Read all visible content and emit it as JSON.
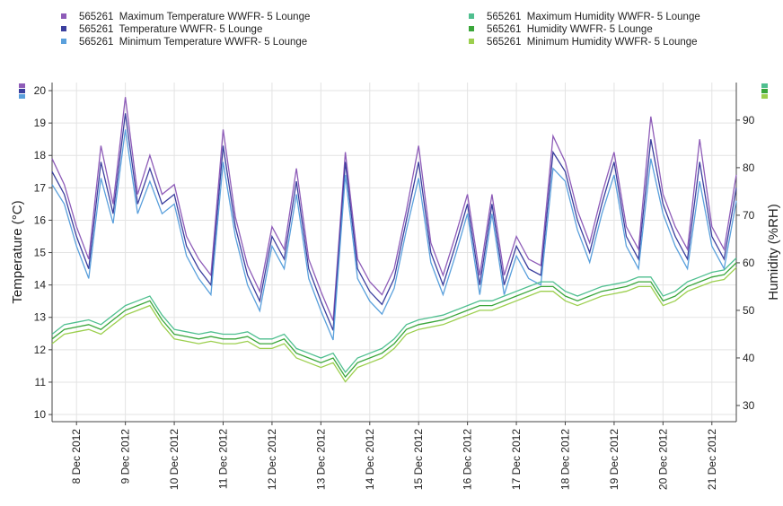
{
  "chart_data": {
    "type": "line",
    "categories": [
      null,
      null,
      "8 Dec 2012",
      null,
      null,
      null,
      "9 Dec 2012",
      null,
      null,
      null,
      "10 Dec 2012",
      null,
      null,
      null,
      "11 Dec 2012",
      null,
      null,
      null,
      "12 Dec 2012",
      null,
      null,
      null,
      "13 Dec 2012",
      null,
      null,
      null,
      "14 Dec 2012",
      null,
      null,
      null,
      "15 Dec 2012",
      null,
      null,
      null,
      "16 Dec 2012",
      null,
      null,
      null,
      "17 Dec 2012",
      null,
      null,
      null,
      "18 Dec 2012",
      null,
      null,
      null,
      "19 Dec 2012",
      null,
      null,
      null,
      "20 Dec 2012",
      null,
      null,
      null,
      "21 Dec 2012",
      null,
      null
    ],
    "y_label": "Temperature (°C)",
    "y2_label": "Humidity (%RH)",
    "ylim": [
      9.78,
      20.25
    ],
    "yticks": [
      10,
      11,
      12,
      13,
      14,
      15,
      16,
      17,
      18,
      19,
      20
    ],
    "y2lim": [
      26.6,
      97.9
    ],
    "y2ticks": [
      30,
      40,
      50,
      60,
      70,
      80,
      90
    ],
    "grid": true,
    "series": [
      {
        "name": "565261  Maximum Temperature WWFR- 5 Lounge",
        "color": "#8e5cb8",
        "values": [
          17.9,
          17.1,
          15.8,
          14.8,
          18.3,
          16.5,
          19.8,
          16.8,
          18.0,
          16.8,
          17.1,
          15.5,
          14.8,
          14.3,
          18.8,
          16.1,
          14.6,
          13.8,
          15.8,
          15.1,
          17.6,
          14.8,
          13.8,
          12.9,
          18.1,
          14.8,
          14.1,
          13.7,
          14.5,
          16.3,
          18.3,
          15.3,
          14.3,
          15.5,
          16.8,
          14.3,
          16.8,
          14.3,
          15.5,
          14.8,
          14.6,
          18.6,
          17.8,
          16.3,
          15.3,
          16.8,
          18.1,
          15.8,
          15.1,
          19.2,
          16.8,
          15.8,
          15.1,
          18.5,
          15.8,
          15.1,
          17.4
        ]
      },
      {
        "name": "565261  Temperature WWFR- 5 Lounge",
        "color": "#3b3f9e",
        "values": [
          17.5,
          16.8,
          15.5,
          14.5,
          17.8,
          16.2,
          19.3,
          16.5,
          17.6,
          16.5,
          16.8,
          15.2,
          14.5,
          14.0,
          18.3,
          15.8,
          14.3,
          13.5,
          15.5,
          14.8,
          17.2,
          14.5,
          13.5,
          12.6,
          17.8,
          14.5,
          13.8,
          13.4,
          14.2,
          16.0,
          17.8,
          15.0,
          14.0,
          15.2,
          16.5,
          14.0,
          16.5,
          14.0,
          15.2,
          14.5,
          14.3,
          18.1,
          17.5,
          16.0,
          15.0,
          16.5,
          17.8,
          15.5,
          14.8,
          18.5,
          16.5,
          15.5,
          14.8,
          17.8,
          15.5,
          14.8,
          17.0
        ]
      },
      {
        "name": "565261  Minimum Temperature WWFR- 5 Lounge",
        "color": "#5aa0dc",
        "values": [
          17.1,
          16.5,
          15.2,
          14.2,
          17.3,
          15.9,
          18.8,
          16.2,
          17.2,
          16.2,
          16.5,
          14.9,
          14.2,
          13.7,
          17.8,
          15.5,
          14.0,
          13.2,
          15.2,
          14.5,
          16.8,
          14.2,
          13.2,
          12.3,
          17.4,
          14.2,
          13.5,
          13.1,
          13.9,
          15.7,
          17.3,
          14.7,
          13.7,
          14.9,
          16.2,
          13.7,
          16.2,
          13.7,
          14.9,
          14.2,
          14.0,
          17.6,
          17.2,
          15.7,
          14.7,
          16.2,
          17.4,
          15.2,
          14.5,
          17.9,
          16.2,
          15.2,
          14.5,
          17.2,
          15.2,
          14.5,
          16.6
        ]
      },
      {
        "name": "565261  Maximum Humidity WWFR- 5 Lounge",
        "color": "#4fbf8f",
        "axis": "y2",
        "values": [
          45,
          47,
          47.5,
          48,
          47,
          49,
          51,
          52,
          53,
          49,
          46,
          45.5,
          45,
          45.5,
          45,
          45,
          45.5,
          44,
          44,
          45,
          42,
          41,
          40,
          41,
          37,
          40,
          41,
          42,
          44,
          47,
          48,
          48.5,
          49,
          50,
          51,
          52,
          52,
          53,
          54,
          55,
          56,
          56,
          54,
          53,
          54,
          55,
          55.5,
          56,
          57,
          57,
          53,
          54,
          56,
          57,
          58,
          58.5,
          61
        ]
      },
      {
        "name": "565261  Humidity WWFR- 5 Lounge",
        "color": "#3aa63a",
        "axis": "y2",
        "values": [
          44,
          46,
          46.5,
          47,
          46,
          48,
          50,
          51,
          52,
          48,
          45,
          44.5,
          44,
          44.5,
          44,
          44,
          44.5,
          43,
          43,
          44,
          41,
          40,
          39,
          40,
          36,
          39,
          40,
          41,
          43,
          46,
          47,
          47.5,
          48,
          49,
          50,
          51,
          51,
          52,
          53,
          54,
          55,
          55,
          53,
          52,
          53,
          54,
          54.5,
          55,
          56,
          56,
          52,
          53,
          55,
          56,
          57,
          57.5,
          60
        ]
      },
      {
        "name": "565261  Minimum Humidity WWFR- 5 Lounge",
        "color": "#9ccf4e",
        "axis": "y2",
        "values": [
          43,
          45,
          45.5,
          46,
          45,
          47,
          49,
          50,
          51,
          47,
          44,
          43.5,
          43,
          43.5,
          43,
          43,
          43.5,
          42,
          42,
          43,
          40,
          39,
          38,
          39,
          35,
          38,
          39,
          40,
          42,
          45,
          46,
          46.5,
          47,
          48,
          49,
          50,
          50,
          51,
          52,
          53,
          54,
          54,
          52,
          51,
          52,
          53,
          53.5,
          54,
          55,
          55,
          51,
          52,
          54,
          55,
          56,
          56.5,
          59
        ]
      }
    ]
  }
}
